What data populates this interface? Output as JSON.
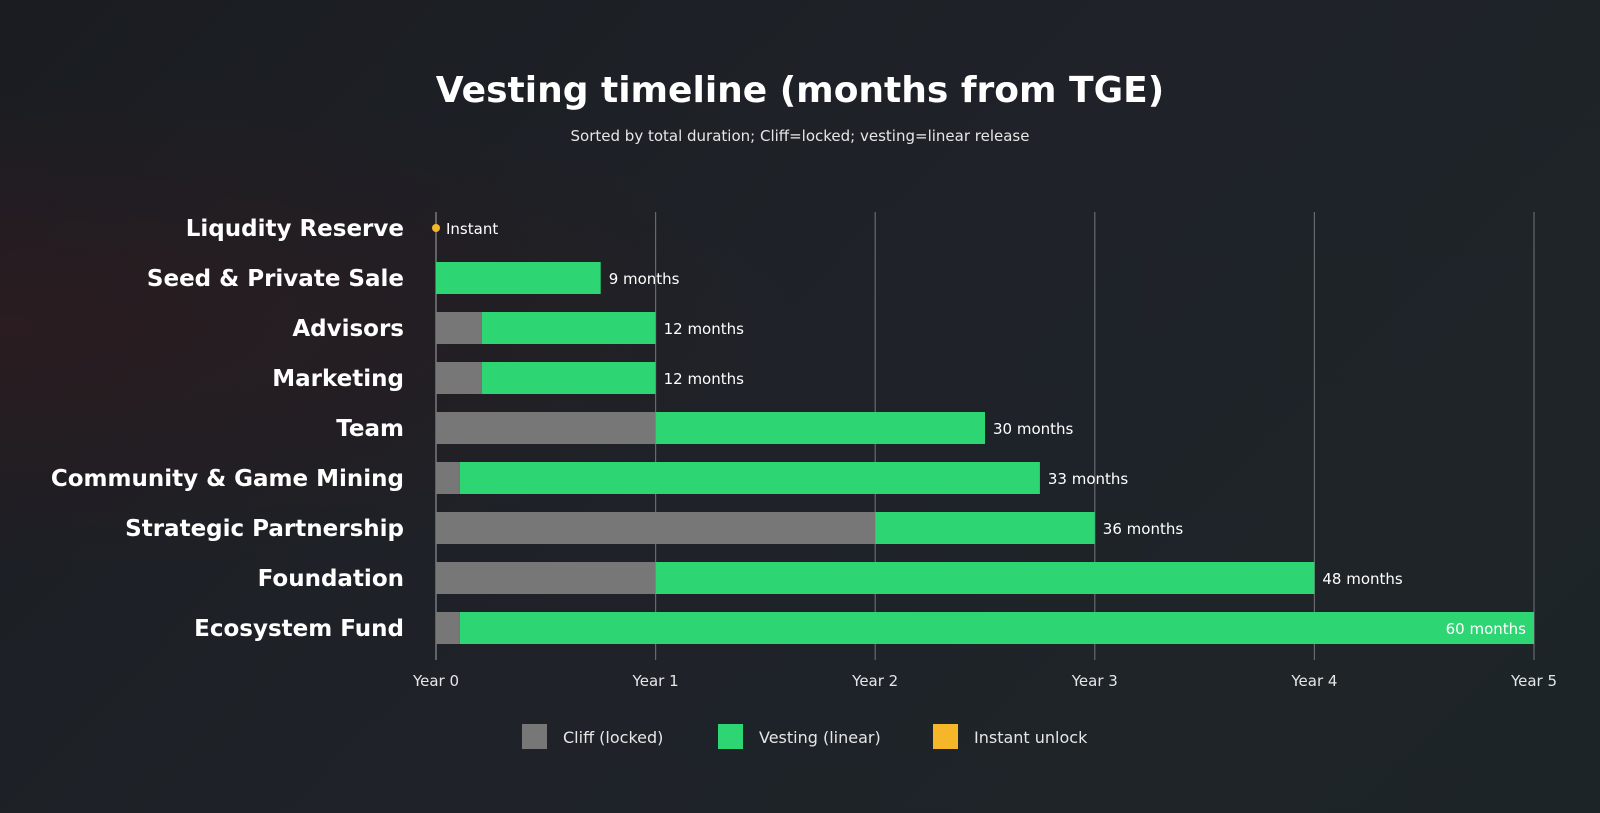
{
  "chart_data": {
    "type": "bar",
    "orientation": "horizontal",
    "stacked": true,
    "title": "Vesting timeline (months from TGE)",
    "subtitle": "Sorted by total duration; Cliff=locked; vesting=linear release",
    "x_unit": "months",
    "xlim": [
      0,
      60
    ],
    "x_ticks": [
      {
        "value": 0,
        "label": "Year 0"
      },
      {
        "value": 12,
        "label": "Year 1"
      },
      {
        "value": 24,
        "label": "Year 2"
      },
      {
        "value": 36,
        "label": "Year 3"
      },
      {
        "value": 48,
        "label": "Year 4"
      },
      {
        "value": 60,
        "label": "Year 5"
      }
    ],
    "grid": "vertical",
    "categories": [
      "Liqudity Reserve",
      "Seed & Private Sale",
      "Advisors",
      "Marketing",
      "Team",
      "Community & Game Mining",
      "Strategic Partnership",
      "Foundation",
      "Ecosystem Fund"
    ],
    "series": [
      {
        "key": "cliff",
        "name": "Cliff (locked)",
        "color": "#777777",
        "values": [
          0,
          0,
          2.5,
          2.5,
          12,
          1.3,
          24,
          12,
          1.3
        ]
      },
      {
        "key": "vesting",
        "name": "Vesting (linear)",
        "color": "#2ed573",
        "values": [
          0,
          9,
          9.5,
          9.5,
          18,
          31.7,
          12,
          36,
          58.7
        ]
      },
      {
        "key": "instant",
        "name": "Instant unlock",
        "color": "#f5b729",
        "values": [
          1,
          0,
          0,
          0,
          0,
          0,
          0,
          0,
          0
        ]
      }
    ],
    "data_labels": [
      "Instant",
      "9 months",
      "12 months",
      "12 months",
      "30 months",
      "33 months",
      "36 months",
      "48 months",
      "60 months"
    ],
    "legend_position": "bottom-center"
  }
}
